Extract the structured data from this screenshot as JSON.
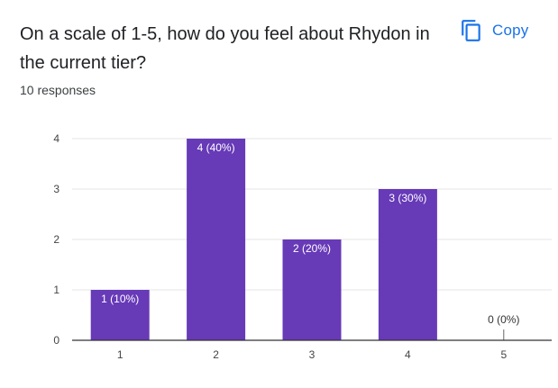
{
  "question": {
    "title": "On a scale of 1-5, how do you feel about Rhydon in the current tier?",
    "responses": "10 responses"
  },
  "toolbar": {
    "copy_label": "Copy",
    "copy_icon": "copy-icon"
  },
  "colors": {
    "bar": "#673ab7",
    "accent": "#1a73e8",
    "grid": "#e6e6e6",
    "axis": "#333333"
  },
  "chart_data": {
    "type": "bar",
    "categories": [
      "1",
      "2",
      "3",
      "4",
      "5"
    ],
    "values": [
      1,
      4,
      2,
      3,
      0
    ],
    "data_labels": [
      "1 (10%)",
      "4 (40%)",
      "2 (20%)",
      "3 (30%)",
      "0 (0%)"
    ],
    "yticks": [
      "0",
      "1",
      "2",
      "3",
      "4"
    ],
    "ylim": [
      0,
      4
    ],
    "grid": true,
    "title": "",
    "xlabel": "",
    "ylabel": ""
  }
}
